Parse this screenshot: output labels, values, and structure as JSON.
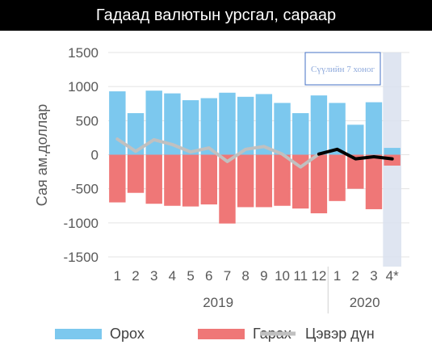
{
  "chart_data": {
    "type": "bar",
    "title": "Гадаад валютын урсгал, сараар",
    "ylabel": "Сая ам.доллар",
    "ylim": [
      -1500,
      1500
    ],
    "yticks": [
      1500,
      1000,
      500,
      0,
      -500,
      -1000,
      -1500
    ],
    "categories": [
      "1",
      "2",
      "3",
      "4",
      "5",
      "6",
      "7",
      "8",
      "9",
      "10",
      "11",
      "12",
      "1",
      "2",
      "3",
      "4*"
    ],
    "groups": [
      {
        "label": "2019",
        "from": 0,
        "to": 11
      },
      {
        "label": "2020",
        "from": 12,
        "to": 15
      }
    ],
    "series": [
      {
        "name": "Орох",
        "kind": "bar",
        "color": "#7cc8ee",
        "values": [
          930,
          610,
          940,
          900,
          800,
          830,
          910,
          850,
          890,
          760,
          610,
          870,
          760,
          440,
          770,
          100
        ]
      },
      {
        "name": "Гарах",
        "kind": "bar",
        "color": "#ef7777",
        "values": [
          -700,
          -560,
          -720,
          -750,
          -760,
          -730,
          -1010,
          -770,
          -770,
          -750,
          -790,
          -860,
          -680,
          -500,
          -800,
          -160
        ]
      },
      {
        "name": "Цэвэр дүн",
        "kind": "line",
        "color": "#c0c0c0",
        "values": [
          230,
          50,
          220,
          150,
          40,
          100,
          -100,
          80,
          120,
          10,
          -180,
          10,
          null,
          null,
          null,
          null
        ]
      },
      {
        "name": "",
        "kind": "line",
        "color": "#000000",
        "values": [
          null,
          null,
          null,
          null,
          null,
          null,
          null,
          null,
          null,
          null,
          null,
          10,
          80,
          -60,
          -30,
          -60
        ]
      }
    ],
    "forecast_band": {
      "from_index": 15,
      "color": "#d9e1ef"
    },
    "annotation": "Сүүлийн 7 хоног",
    "legend_position": "bottom",
    "grid": "horizontal"
  }
}
